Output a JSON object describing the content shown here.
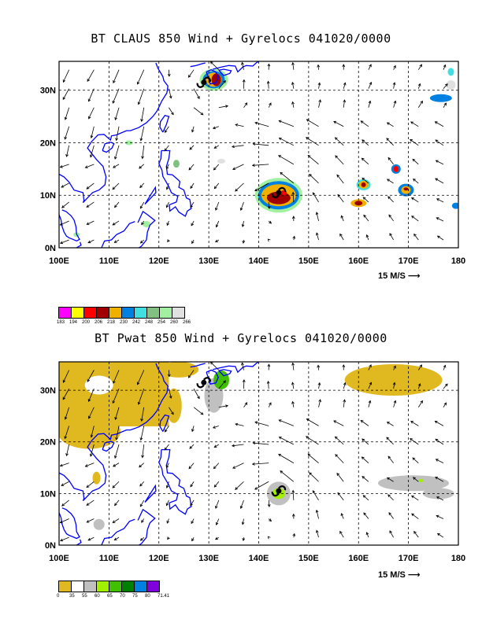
{
  "panels": [
    {
      "title": "BT CLAUS 850 Wind + Gyrelocs 041020/0000",
      "lat_labels": [
        "0N",
        "10N",
        "20N",
        "30N"
      ],
      "lon_labels": [
        "100E",
        "110E",
        "120E",
        "130E",
        "140E",
        "150E",
        "160E",
        "170E",
        "180"
      ],
      "scale_label": "15 M/S",
      "colorbar_labels": [
        "183",
        "194",
        "200",
        "206",
        "218",
        "230",
        "242",
        "248",
        "254",
        "260",
        "266"
      ],
      "colorbar_colors": [
        "#ff00ff",
        "#ffff00",
        "#ff0000",
        "#a00000",
        "#f0b000",
        "#0080e0",
        "#40e0e0",
        "#80c080",
        "#a0f0a0",
        "#e0e0e0"
      ],
      "cyclones": [
        {
          "lon": 129,
          "lat": 31.5
        },
        {
          "lon": 144,
          "lat": 10.5
        }
      ]
    },
    {
      "title": "BT Pwat 850 Wind + Gyrelocs 041020/0000",
      "lat_labels": [
        "0N",
        "10N",
        "20N",
        "30N"
      ],
      "lon_labels": [
        "100E",
        "110E",
        "120E",
        "130E",
        "140E",
        "150E",
        "160E",
        "170E",
        "180"
      ],
      "scale_label": "15 M/S",
      "colorbar_labels": [
        "0",
        "35",
        "55",
        "60",
        "65",
        "70",
        "75",
        "80",
        "71.41"
      ],
      "colorbar_colors": [
        "#e0b820",
        "#ffffff",
        "#c0c0c0",
        "#a0f000",
        "#40c000",
        "#008000",
        "#0080e0",
        "#8000e0"
      ],
      "cyclones": [
        {
          "lon": 129,
          "lat": 31.5
        },
        {
          "lon": 144,
          "lat": 10.5
        }
      ]
    }
  ]
}
